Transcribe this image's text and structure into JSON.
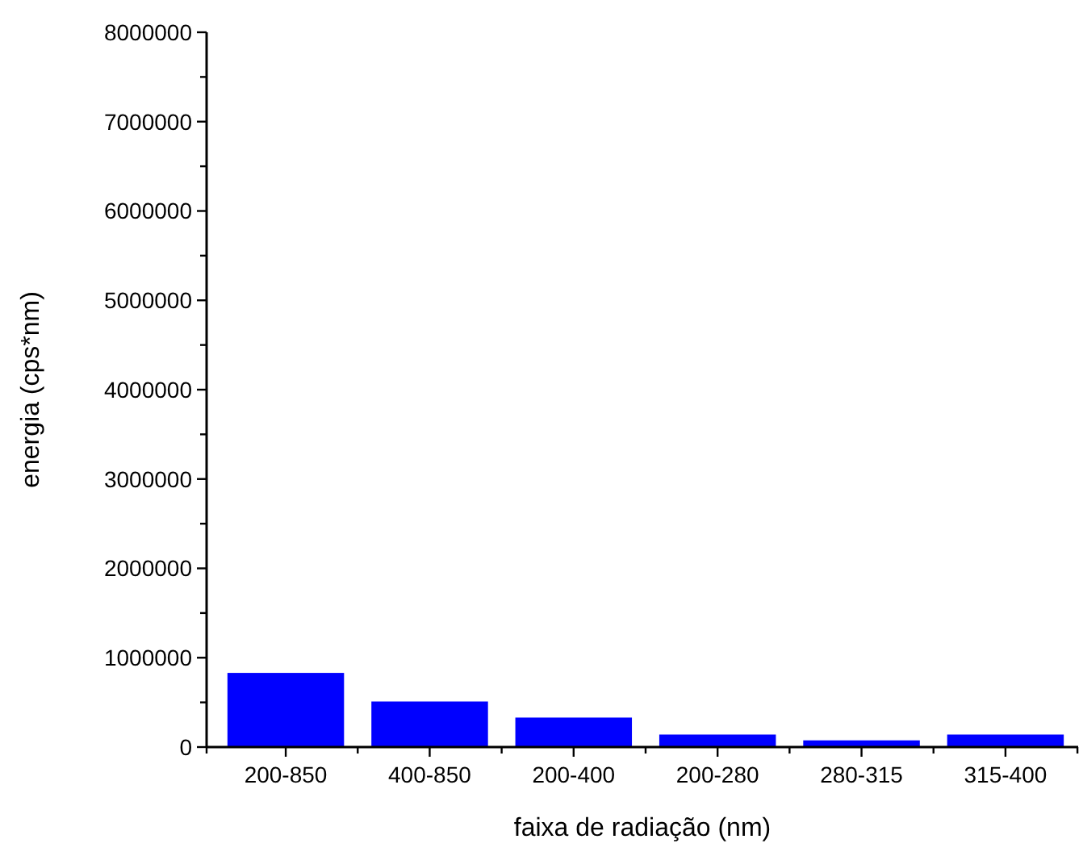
{
  "chart_data": {
    "type": "bar",
    "xlabel": "faixa de radiação (nm)",
    "ylabel": "energia (cps*nm)",
    "categories": [
      "200-850",
      "400-850",
      "200-400",
      "200-280",
      "280-315",
      "315-400"
    ],
    "values": [
      830000,
      510000,
      330000,
      140000,
      75000,
      140000
    ],
    "color": "#0000ff",
    "ylim": [
      0,
      8000000
    ],
    "yticks": [
      0,
      1000000,
      2000000,
      3000000,
      4000000,
      5000000,
      6000000,
      7000000,
      8000000
    ],
    "grid": false
  }
}
